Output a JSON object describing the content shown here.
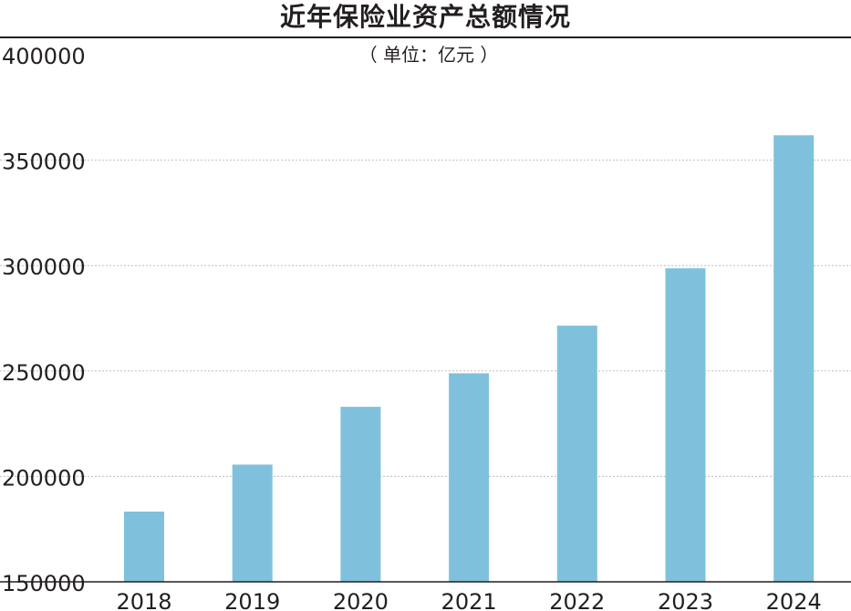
{
  "chart_data": {
    "type": "bar",
    "title": "近年保险业资产总额情况",
    "subtitle": "（ 单位：亿元 ）",
    "categories": [
      "2018",
      "2019",
      "2020",
      "2021",
      "2022",
      "2023",
      "2024"
    ],
    "values": [
      183300,
      205600,
      233000,
      248900,
      271500,
      298700,
      361800
    ],
    "ylim": [
      150000,
      400000
    ],
    "yticks": [
      150000,
      200000,
      250000,
      300000,
      350000,
      400000
    ],
    "grid": true,
    "bar_color": "#7fc1dc",
    "grid_color": "#bfbfbf"
  }
}
